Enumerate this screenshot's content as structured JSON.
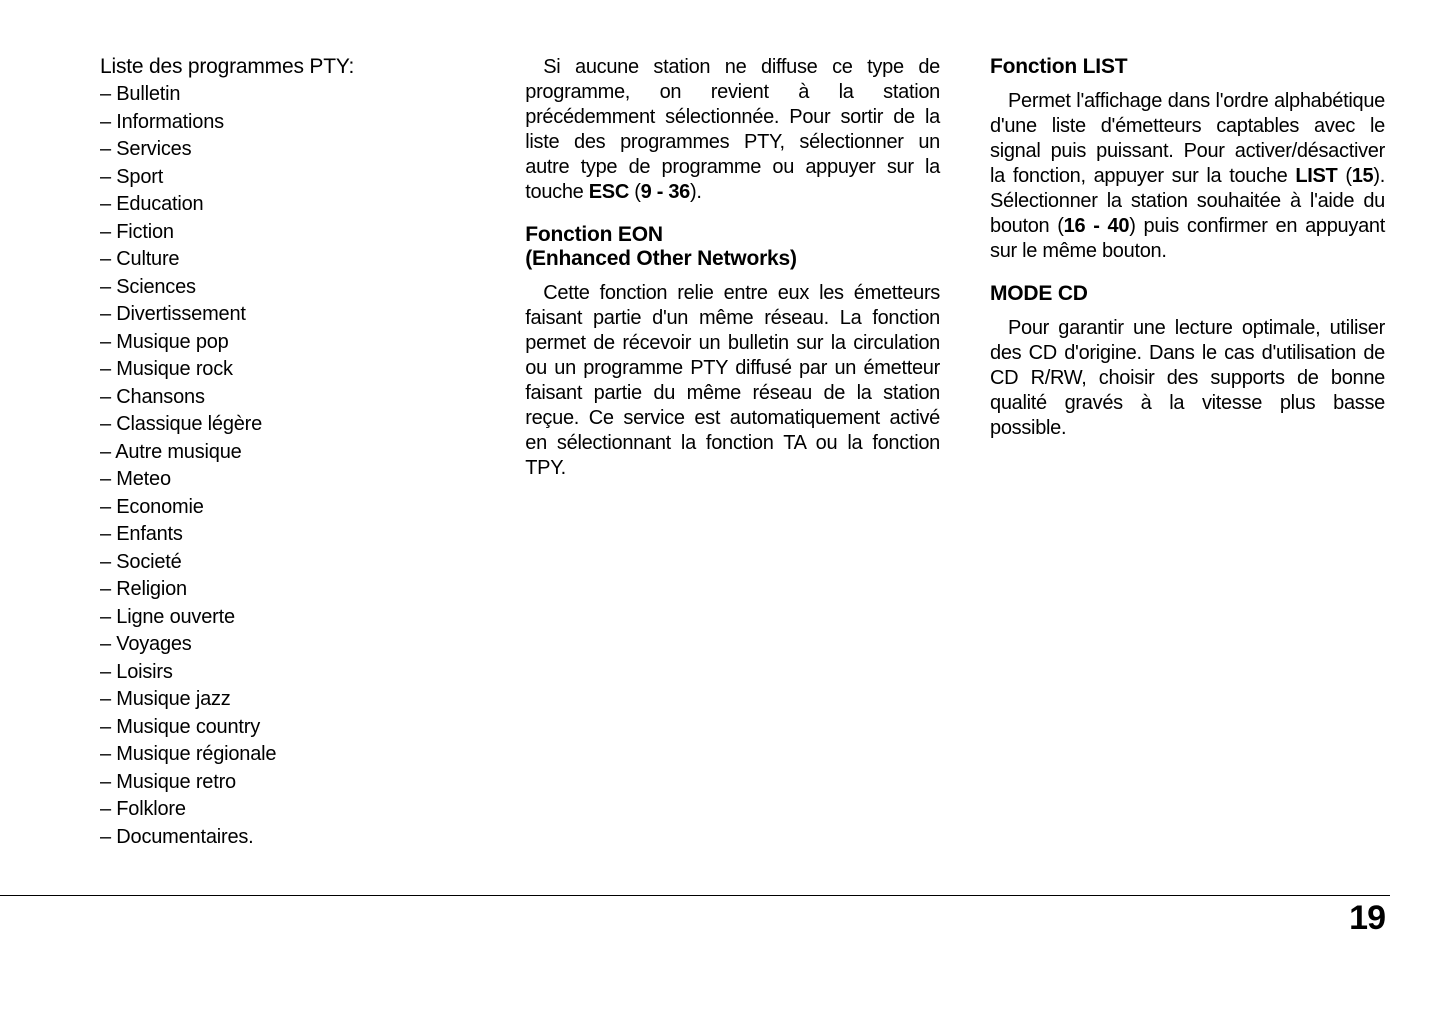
{
  "column1": {
    "list_heading": "Liste des programmes PTY:",
    "items": [
      "Bulletin",
      "Informations",
      "Services",
      "Sport",
      "Education",
      "Fiction",
      "Culture",
      "Sciences",
      "Divertissement",
      "Musique pop",
      "Musique rock",
      "Chansons",
      "Classique légère",
      "Autre musique",
      "Meteo",
      "Economie",
      "Enfants",
      "Societé",
      "Religion",
      "Ligne ouverte",
      "Voyages",
      "Loisirs",
      "Musique jazz",
      "Musique country",
      "Musique régionale",
      "Musique retro",
      "Folklore",
      "Documentaires."
    ]
  },
  "column2": {
    "para1_a": "Si aucune station ne diffuse ce type de programme, on revient à la station précédemment sélectionnée. Pour sortir de la liste des programmes PTY, sélectionner un autre type de pro­gramme ou appuyer sur la touche ",
    "para1_esc": "ESC",
    "para1_b": " (",
    "para1_ref": "9 - 36",
    "para1_c": ").",
    "heading2_a": "Fonction EON",
    "heading2_b": "(Enhanced Other Networks)",
    "para2": "Cette fonction relie entre eux les émetteurs faisant partie d'un même réseau. La fonction permet de réce­voir un bulletin sur la circulation ou un programme PTY diffusé par un émet­teur faisant partie du même réseau de la station reçue. Ce service est auto­matiquement activé en sélectionnant la fonction TA ou la fonction TPY."
  },
  "column3": {
    "heading1": "Fonction LIST",
    "para1_a": "Permet l'affichage dans l'ordre al­phabétique d'une liste d'émetteurs captables avec le signal puis puissant. Pour activer/désactiver la fonction, ap­puyer sur la touche ",
    "para1_list": "LIST",
    "para1_b": " (",
    "para1_ref1": "15",
    "para1_c": "). Sélec­tionner la station souhaitée à l'aide du bouton (",
    "para1_ref2": "16 - 40",
    "para1_d": ") puis confirmer en ap­puyant sur le même bouton.",
    "heading2": "MODE CD",
    "para2": "Pour garantir une lecture optimale, utiliser des CD d'origine. Dans le cas d'utilisation de CD R/RW, choisir des supports de bonne qualité gravés à la vitesse plus basse possible."
  },
  "page_number": "19"
}
